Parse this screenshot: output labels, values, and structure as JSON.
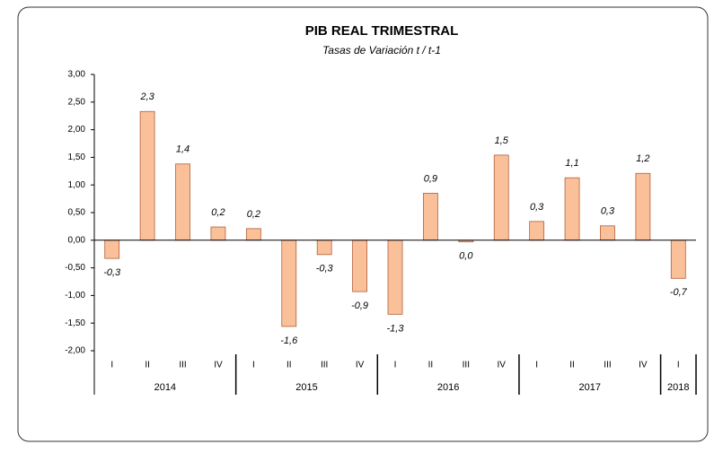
{
  "chart_data": {
    "type": "bar",
    "title": "PIB REAL TRIMESTRAL",
    "subtitle": "Tasas de Variación t / t-1",
    "categories": [
      {
        "year": "2014",
        "quarter": "I"
      },
      {
        "year": "2014",
        "quarter": "II"
      },
      {
        "year": "2014",
        "quarter": "III"
      },
      {
        "year": "2014",
        "quarter": "IV"
      },
      {
        "year": "2015",
        "quarter": "I"
      },
      {
        "year": "2015",
        "quarter": "II"
      },
      {
        "year": "2015",
        "quarter": "III"
      },
      {
        "year": "2015",
        "quarter": "IV"
      },
      {
        "year": "2016",
        "quarter": "I"
      },
      {
        "year": "2016",
        "quarter": "II"
      },
      {
        "year": "2016",
        "quarter": "III"
      },
      {
        "year": "2016",
        "quarter": "IV"
      },
      {
        "year": "2017",
        "quarter": "I"
      },
      {
        "year": "2017",
        "quarter": "II"
      },
      {
        "year": "2017",
        "quarter": "III"
      },
      {
        "year": "2017",
        "quarter": "IV"
      },
      {
        "year": "2018",
        "quarter": "I"
      }
    ],
    "values": [
      -0.33,
      2.33,
      1.38,
      0.24,
      0.21,
      -1.56,
      -0.26,
      -0.93,
      -1.34,
      0.85,
      -0.03,
      1.54,
      0.34,
      1.13,
      0.26,
      1.21,
      -0.69
    ],
    "value_labels": [
      "-0,3",
      "2,3",
      "1,4",
      "0,2",
      "0,2",
      "-1,6",
      "-0,3",
      "-0,9",
      "-1,3",
      "0,9",
      "0,0",
      "1,5",
      "0,3",
      "1,1",
      "0,3",
      "1,2",
      "-0,7"
    ],
    "color": "#fac09a",
    "edge_color": "#b0603a",
    "ylim": [
      -2,
      3
    ],
    "yticks": [
      {
        "value": 3,
        "label": "3,00"
      },
      {
        "value": 2.5,
        "label": "2,50"
      },
      {
        "value": 2,
        "label": "2,00"
      },
      {
        "value": 1.5,
        "label": "1,50"
      },
      {
        "value": 1,
        "label": "1,00"
      },
      {
        "value": 0.5,
        "label": "0,50"
      },
      {
        "value": 0,
        "label": "0,00"
      },
      {
        "value": -0.5,
        "label": "-0,50"
      },
      {
        "value": -1,
        "label": "-1,00"
      },
      {
        "value": -1.5,
        "label": "-1,50"
      },
      {
        "value": -2,
        "label": "-2,00"
      }
    ],
    "grid": false
  }
}
